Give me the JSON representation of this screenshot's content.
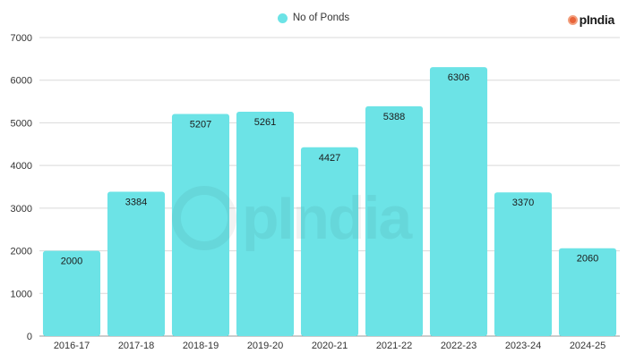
{
  "legend": {
    "label": "No of Ponds",
    "color": "#6ce3e6"
  },
  "brand": {
    "name": "pIndia",
    "watermark": "pIndia"
  },
  "chart_data": {
    "type": "bar",
    "categories": [
      "2016-17",
      "2017-18",
      "2018-19",
      "2019-20",
      "2020-21",
      "2021-22",
      "2022-23",
      "2023-24",
      "2024-25"
    ],
    "series": [
      {
        "name": "No of Ponds",
        "values": [
          2000,
          3384,
          5207,
          5261,
          4427,
          5388,
          6306,
          3370,
          2060
        ],
        "color": "#6ce3e6"
      }
    ],
    "ylim": [
      0,
      7000
    ],
    "yticks": [
      0,
      1000,
      2000,
      3000,
      4000,
      5000,
      6000,
      7000
    ],
    "grid": true,
    "legend_position": "top-center",
    "data_labels": true
  }
}
